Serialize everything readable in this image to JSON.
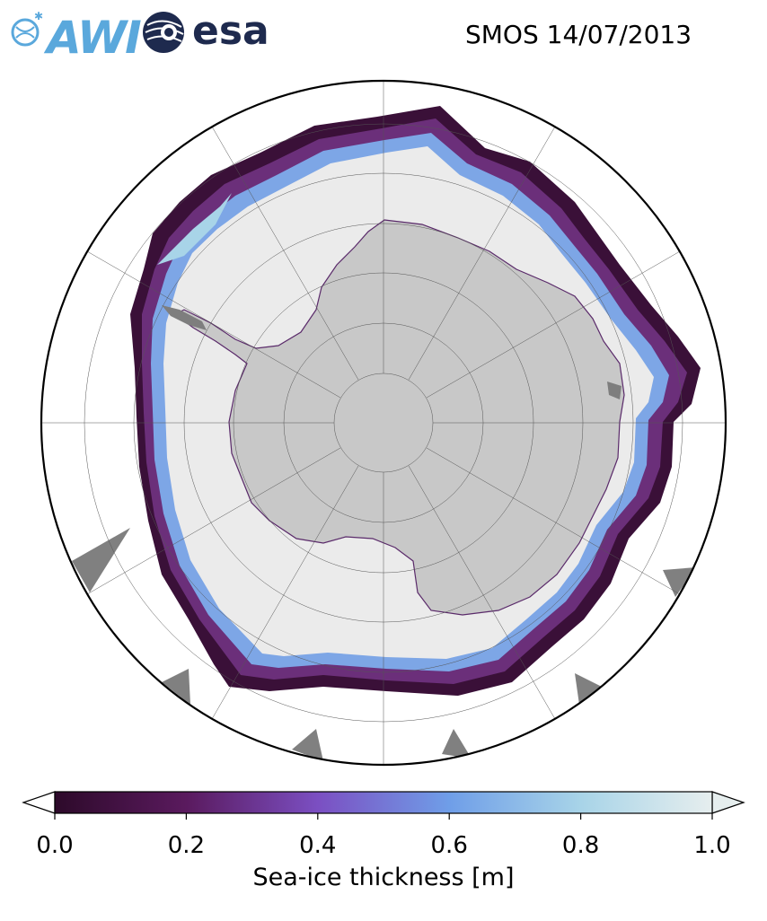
{
  "header": {
    "awi_logo_text": "AWI",
    "esa_logo_text": "esa",
    "title": "SMOS 14/07/2013"
  },
  "colorbar": {
    "label": "Sea-ice thickness [m]",
    "ticks": [
      "0.0",
      "0.2",
      "0.4",
      "0.6",
      "0.8",
      "1.0"
    ],
    "range": [
      0.0,
      1.0
    ],
    "extend": "both",
    "colors": [
      "#2d0a2a",
      "#5a1a5e",
      "#7b4fc2",
      "#6f9ee8",
      "#a8d4e8",
      "#e6eeee"
    ]
  },
  "map": {
    "projection": "south-polar-stereographic",
    "land_color": "#c8c8c8",
    "ocean_color": "#ffffff",
    "ice_base_color": "#ebebeb",
    "missing_data_color": "#808080",
    "grid": true
  }
}
